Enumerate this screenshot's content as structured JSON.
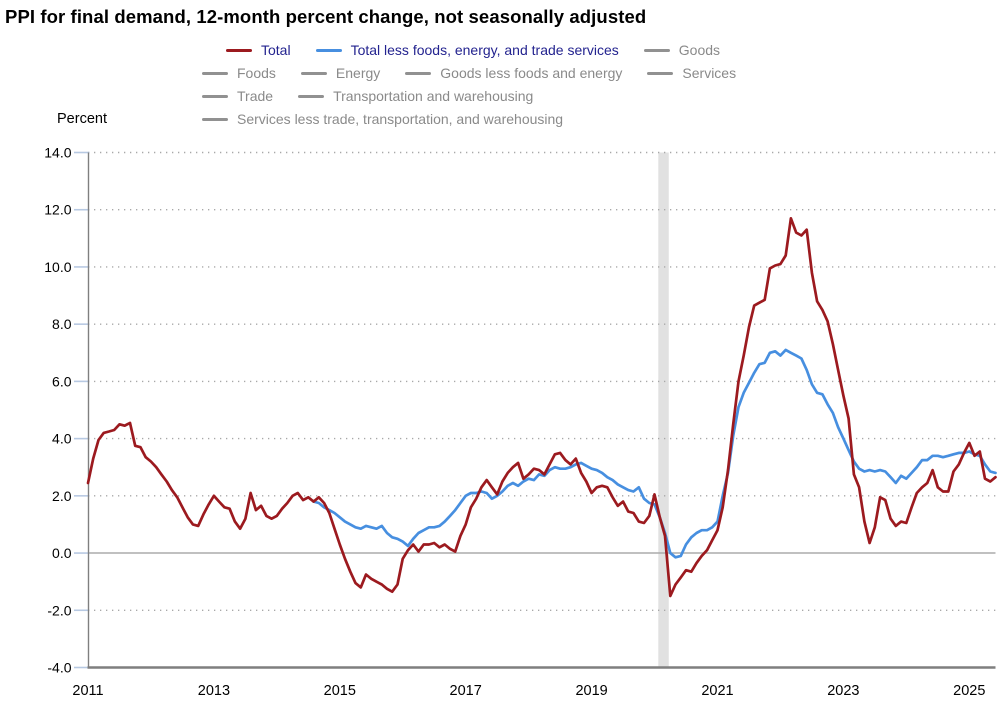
{
  "title": "PPI for final demand, 12-month percent change, not seasonally adjusted",
  "y_axis_title": "Percent",
  "colors": {
    "total_line": "#9c1a1f",
    "core_line": "#478fe0",
    "active_legend_text": "#23238f",
    "inactive_legend_text": "#8a8a8a",
    "inactive_swatch": "#919191",
    "axis_line": "#7f7f7f",
    "dotted_gridline": "#a8a8a8",
    "zero_line": "#ababab",
    "tick_mark": "#b7c9e2",
    "recession_band": "#e1e1e1",
    "label_text": "#000000"
  },
  "legend": {
    "rows": [
      [
        {
          "id": "total",
          "label": "Total",
          "color": "#9c1a1f",
          "active": true
        },
        {
          "id": "core",
          "label": "Total less foods, energy, and trade services",
          "color": "#478fe0",
          "active": true
        },
        {
          "id": "goods",
          "label": "Goods",
          "color": "#919191",
          "active": false
        }
      ],
      [
        {
          "id": "foods",
          "label": "Foods",
          "color": "#919191",
          "active": false
        },
        {
          "id": "energy",
          "label": "Energy",
          "color": "#919191",
          "active": false
        },
        {
          "id": "goods-less-foods-energy",
          "label": "Goods less foods and energy",
          "color": "#919191",
          "active": false
        },
        {
          "id": "services",
          "label": "Services",
          "color": "#919191",
          "active": false
        }
      ],
      [
        {
          "id": "trade",
          "label": "Trade",
          "color": "#919191",
          "active": false
        },
        {
          "id": "transportation-warehousing",
          "label": "Transportation and warehousing",
          "color": "#919191",
          "active": false
        }
      ],
      [
        {
          "id": "services-less-ttw",
          "label": "Services less trade, transportation, and warehousing",
          "color": "#919191",
          "active": false
        }
      ]
    ]
  },
  "chart_data": {
    "type": "line",
    "title": "PPI for final demand, 12-month percent change, not seasonally adjusted",
    "ylabel": "Percent",
    "ylim": [
      -4.0,
      14.0
    ],
    "grid": "dotted horizontal, solid zero line",
    "legend_position": "top",
    "y_tick_labels": [
      "14.0",
      "12.0",
      "10.0",
      "8.0",
      "6.0",
      "4.0",
      "2.0",
      "0.0",
      "-2.0",
      "-4.0"
    ],
    "x_tick_labels": [
      "2011",
      "2013",
      "2015",
      "2017",
      "2019",
      "2021",
      "2023",
      "2025"
    ],
    "x_start": "2011-01",
    "x_end": "2025-06",
    "x_freq": "monthly",
    "recession_band": {
      "start": "2020-02",
      "end": "2020-04"
    },
    "series": [
      {
        "id": "total",
        "name": "Total",
        "color": "#9c1a1f",
        "start": "2011-01",
        "values": [
          2.45,
          3.3,
          3.95,
          4.2,
          4.25,
          4.3,
          4.5,
          4.45,
          4.55,
          3.75,
          3.7,
          3.35,
          3.2,
          3.0,
          2.75,
          2.5,
          2.2,
          1.95,
          1.6,
          1.25,
          1.0,
          0.95,
          1.35,
          1.7,
          2.0,
          1.8,
          1.6,
          1.55,
          1.1,
          0.85,
          1.2,
          2.1,
          1.5,
          1.65,
          1.3,
          1.2,
          1.3,
          1.55,
          1.75,
          2.0,
          2.1,
          1.85,
          1.95,
          1.8,
          1.95,
          1.75,
          1.4,
          0.85,
          0.3,
          -0.2,
          -0.65,
          -1.05,
          -1.2,
          -0.75,
          -0.9,
          -1.0,
          -1.1,
          -1.25,
          -1.35,
          -1.1,
          -0.2,
          0.1,
          0.3,
          0.05,
          0.3,
          0.3,
          0.35,
          0.2,
          0.3,
          0.15,
          0.05,
          0.6,
          1.0,
          1.6,
          1.9,
          2.3,
          2.55,
          2.3,
          2.05,
          2.5,
          2.8,
          3.0,
          3.15,
          2.6,
          2.75,
          2.95,
          2.9,
          2.75,
          3.1,
          3.45,
          3.5,
          3.25,
          3.1,
          3.3,
          2.8,
          2.5,
          2.1,
          2.3,
          2.35,
          2.3,
          1.95,
          1.65,
          1.8,
          1.45,
          1.4,
          1.1,
          1.05,
          1.3,
          2.05,
          1.25,
          0.6,
          -1.5,
          -1.1,
          -0.85,
          -0.6,
          -0.65,
          -0.35,
          -0.1,
          0.1,
          0.45,
          0.8,
          1.6,
          2.9,
          4.5,
          6.0,
          6.9,
          7.9,
          8.65,
          8.75,
          8.85,
          9.95,
          10.05,
          10.1,
          10.4,
          11.7,
          11.2,
          11.1,
          11.3,
          9.8,
          8.8,
          8.5,
          8.1,
          7.3,
          6.4,
          5.5,
          4.7,
          2.75,
          2.3,
          1.1,
          0.35,
          0.9,
          1.95,
          1.85,
          1.2,
          0.95,
          1.1,
          1.05,
          1.6,
          2.1,
          2.3,
          2.45,
          2.9,
          2.3,
          2.15,
          2.15,
          2.85,
          3.1,
          3.5,
          3.85,
          3.4,
          3.55,
          2.6,
          2.5,
          2.65
        ]
      },
      {
        "id": "core",
        "name": "Total less foods, energy, and trade services",
        "color": "#478fe0",
        "start": "2014-08",
        "values": [
          1.8,
          1.75,
          1.6,
          1.5,
          1.4,
          1.25,
          1.1,
          1.0,
          0.9,
          0.85,
          0.95,
          0.9,
          0.85,
          0.95,
          0.7,
          0.55,
          0.5,
          0.4,
          0.25,
          0.5,
          0.7,
          0.8,
          0.9,
          0.9,
          0.95,
          1.1,
          1.3,
          1.5,
          1.75,
          2.0,
          2.1,
          2.1,
          2.15,
          2.1,
          1.9,
          2.0,
          2.15,
          2.35,
          2.45,
          2.35,
          2.5,
          2.6,
          2.55,
          2.75,
          2.7,
          2.9,
          3.0,
          2.95,
          2.95,
          3.0,
          3.1,
          3.15,
          3.05,
          2.95,
          2.9,
          2.8,
          2.65,
          2.55,
          2.4,
          2.3,
          2.2,
          2.15,
          2.3,
          1.9,
          1.75,
          1.7,
          1.25,
          0.7,
          0.0,
          -0.15,
          -0.1,
          0.3,
          0.55,
          0.7,
          0.8,
          0.8,
          0.9,
          1.1,
          2.0,
          2.8,
          4.1,
          5.1,
          5.6,
          5.95,
          6.3,
          6.6,
          6.65,
          7.0,
          7.05,
          6.9,
          7.1,
          7.0,
          6.9,
          6.8,
          6.4,
          5.9,
          5.6,
          5.55,
          5.2,
          4.9,
          4.4,
          4.0,
          3.6,
          3.2,
          2.95,
          2.85,
          2.9,
          2.85,
          2.9,
          2.85,
          2.65,
          2.45,
          2.7,
          2.6,
          2.8,
          3.0,
          3.25,
          3.25,
          3.4,
          3.4,
          3.35,
          3.4,
          3.45,
          3.5,
          3.5,
          3.55,
          3.45,
          3.4,
          3.1,
          2.85,
          2.8
        ]
      }
    ]
  }
}
